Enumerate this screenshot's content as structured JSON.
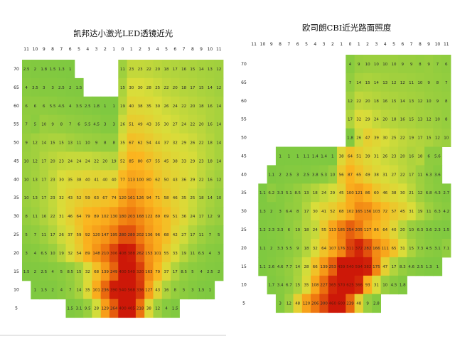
{
  "chart_data": [
    {
      "type": "heatmap",
      "title": "凯邦达小激光LED透镜近光",
      "x_ticks": [
        "11",
        "10",
        "9",
        "8",
        "7",
        "6",
        "5",
        "4",
        "3",
        "2",
        "1",
        "0",
        "1",
        "2",
        "3",
        "4",
        "5",
        "6",
        "7",
        "8",
        "9",
        "10",
        "11"
      ],
      "y_ticks": [
        "70",
        "65",
        "60",
        "55",
        "50",
        "45",
        "40",
        "35",
        "30",
        "25",
        "20",
        "15",
        "10",
        "5"
      ],
      "color_scale": [
        "#7cc840",
        "#d9dd3a",
        "#fbb620",
        "#f07b10",
        "#cd1808"
      ],
      "rows": [
        [
          "2.5",
          "2",
          "1.8",
          "1.5",
          "1.3",
          "1",
          null,
          null,
          null,
          null,
          null,
          "11",
          "23",
          "23",
          "22",
          "20",
          "18",
          "17",
          "16",
          "15",
          "14",
          "13",
          "12"
        ],
        [
          "4",
          "3.5",
          "3",
          "3",
          "2.5",
          "2",
          "1.5",
          null,
          null,
          null,
          null,
          "15",
          "30",
          "30",
          "28",
          "25",
          "22",
          "20",
          "18",
          "17",
          "15",
          "14",
          "12"
        ],
        [
          "6",
          "6",
          "6",
          "5.5",
          "4.5",
          "4",
          "3.5",
          "2.5",
          "1.8",
          "1",
          "1",
          "19",
          "40",
          "38",
          "35",
          "30",
          "26",
          "24",
          "22",
          "20",
          "18",
          "16",
          "14"
        ],
        [
          "7",
          "5",
          "10",
          "9",
          "8",
          "7",
          "6",
          "5.5",
          "4.5",
          "3",
          "3",
          "26",
          "51",
          "49",
          "43",
          "35",
          "30",
          "27",
          "24",
          "22",
          "20",
          "16",
          "14"
        ],
        [
          "9",
          "12",
          "14",
          "15",
          "15",
          "13",
          "11",
          "10",
          "9",
          "8",
          "8",
          "35",
          "67",
          "62",
          "54",
          "44",
          "37",
          "32",
          "29",
          "26",
          "22",
          "18",
          "14"
        ],
        [
          "10",
          "12",
          "17",
          "20",
          "23",
          "24",
          "24",
          "24",
          "22",
          "20",
          "19",
          "52",
          "85",
          "80",
          "67",
          "55",
          "45",
          "38",
          "33",
          "29",
          "23",
          "18",
          "14"
        ],
        [
          "10",
          "13",
          "17",
          "23",
          "30",
          "35",
          "38",
          "40",
          "41",
          "40",
          "40",
          "77",
          "113",
          "100",
          "80",
          "62",
          "50",
          "43",
          "36",
          "29",
          "22",
          "16",
          "12"
        ],
        [
          "10",
          "13",
          "17",
          "23",
          "32",
          "43",
          "52",
          "59",
          "63",
          "67",
          "74",
          "120",
          "161",
          "126",
          "94",
          "71",
          "58",
          "46",
          "35",
          "25",
          "18",
          "14",
          "10"
        ],
        [
          "8",
          "11",
          "16",
          "22",
          "31",
          "46",
          "64",
          "79",
          "89",
          "102",
          "130",
          "180",
          "203",
          "168",
          "122",
          "89",
          "69",
          "51",
          "36",
          "24",
          "17",
          "12",
          "9"
        ],
        [
          "5",
          "7",
          "11",
          "17",
          "26",
          "37",
          "59",
          "92",
          "120",
          "147",
          "195",
          "280",
          "280",
          "202",
          "136",
          "96",
          "68",
          "42",
          "27",
          "17",
          "11",
          "7",
          "5"
        ],
        [
          "3",
          "4",
          "6.5",
          "10",
          "19",
          "32",
          "54",
          "89",
          "148",
          "210",
          "306",
          "408",
          "388",
          "262",
          "153",
          "101",
          "55",
          "33",
          "19",
          "11",
          "6.5",
          "4",
          "3"
        ],
        [
          "1.5",
          "2",
          "2.5",
          "4",
          "5",
          "8.5",
          "15",
          "32",
          "68",
          "139",
          "249",
          "400",
          "540",
          "320",
          "163",
          "79",
          "37",
          "17",
          "8.5",
          "5",
          "4",
          "2.5",
          "2"
        ],
        [
          null,
          "1",
          "1.5",
          "2",
          "4",
          "7",
          "14",
          "35",
          "101",
          "236",
          "390",
          "540",
          "568",
          "336",
          "127",
          "43",
          "16",
          "8",
          "5",
          "3",
          "1.5",
          "1",
          null
        ],
        [
          null,
          null,
          null,
          null,
          null,
          "1.5",
          "3.1",
          "9.5",
          "28",
          "129",
          "264",
          "400",
          "405",
          "218",
          "38",
          "12",
          "4",
          "1.5",
          null,
          null,
          null,
          null,
          null
        ]
      ]
    },
    {
      "type": "heatmap",
      "title": "欧司朗CBI近光路面照度",
      "x_ticks": [
        "11",
        "10",
        "9",
        "8",
        "7",
        "6",
        "5",
        "4",
        "3",
        "2",
        "1",
        "0",
        "1",
        "2",
        "3",
        "4",
        "5",
        "6",
        "7",
        "8",
        "9",
        "10",
        "11"
      ],
      "y_ticks": [
        "70",
        "65",
        "60",
        "55",
        "50",
        "45",
        "40",
        "35",
        "30",
        "25",
        "20",
        "15",
        "10",
        "5"
      ],
      "color_scale": [
        "#7cc840",
        "#d9dd3a",
        "#fbb620",
        "#f07b10",
        "#cd1808"
      ],
      "rows": [
        [
          null,
          null,
          null,
          null,
          null,
          null,
          null,
          null,
          null,
          null,
          null,
          "4",
          "9",
          "10",
          "10",
          "10",
          "10",
          "9",
          "9",
          "8",
          "9",
          "7",
          "6"
        ],
        [
          null,
          null,
          null,
          null,
          null,
          null,
          null,
          null,
          null,
          null,
          null,
          "7",
          "14",
          "15",
          "14",
          "13",
          "12",
          "12",
          "11",
          "10",
          "9",
          "8",
          "7"
        ],
        [
          null,
          null,
          null,
          null,
          null,
          null,
          null,
          null,
          null,
          null,
          null,
          "12",
          "22",
          "20",
          "18",
          "16",
          "15",
          "14",
          "13",
          "12",
          "10",
          "9",
          "8"
        ],
        [
          null,
          null,
          null,
          null,
          null,
          null,
          null,
          null,
          null,
          null,
          null,
          "17",
          "32",
          "29",
          "24",
          "20",
          "18",
          "16",
          "15",
          "13",
          "12",
          "10",
          "8"
        ],
        [
          null,
          null,
          null,
          null,
          null,
          null,
          null,
          null,
          null,
          null,
          null,
          "1.8",
          "26",
          "47",
          "39",
          "30",
          "25",
          "22",
          "19",
          "17",
          "15",
          "12",
          "10"
        ],
        [
          null,
          null,
          null,
          "1",
          "1",
          "1",
          "1.1",
          "1.4",
          "1.4",
          "1",
          "38",
          "64",
          "51",
          "39",
          "31",
          "26",
          "23",
          "20",
          "16",
          "18",
          "6",
          "5.6",
          null
        ],
        [
          null,
          null,
          "1.1",
          "2",
          "2.5",
          "3",
          "2.5",
          "3.8",
          "5.3",
          "10",
          "56",
          "87",
          "65",
          "49",
          "38",
          "31",
          "27",
          "22",
          "17",
          "11",
          "6.3",
          "3.6",
          null
        ],
        [
          null,
          "1.1",
          "6.2",
          "3.3",
          "5.1",
          "8.5",
          "13",
          "18",
          "24",
          "29",
          "45",
          "100",
          "121",
          "86",
          "60",
          "46",
          "38",
          "30",
          "21",
          "12",
          "6.8",
          "4.3",
          "2.7"
        ],
        [
          null,
          "1.3",
          "2",
          "3",
          "6.4",
          "8",
          "17",
          "30",
          "41",
          "52",
          "68",
          "102",
          "165",
          "156",
          "103",
          "72",
          "57",
          "45",
          "31",
          "19",
          "11",
          "6.3",
          "4.2"
        ],
        [
          null,
          "1.2",
          "2.3",
          "3.3",
          "6",
          "10",
          "18",
          "24",
          "55",
          "113",
          "185",
          "254",
          "205",
          "127",
          "86",
          "64",
          "40",
          "20",
          "10",
          "6.3",
          "3.6",
          "2.3",
          "1.5"
        ],
        [
          null,
          "1.1",
          "2",
          "3.3",
          "5.5",
          "9",
          "18",
          "32",
          "64",
          "107",
          "176",
          "311",
          "372",
          "282",
          "166",
          "111",
          "65",
          "31",
          "15",
          "7.3",
          "4.5",
          "3.1",
          "7.1"
        ],
        [
          null,
          "1.1",
          "2.6",
          "4.6",
          "7.7",
          "14",
          "28",
          "66",
          "139",
          "253",
          "439",
          "540",
          "594",
          "382",
          "175",
          "47",
          "17",
          "8.3",
          "4.6",
          "2.5",
          "1.3",
          "1",
          null
        ],
        [
          null,
          null,
          "1.7",
          "3.4",
          "6.7",
          "15",
          "35",
          "108",
          "227",
          "365",
          "570",
          "625",
          "366",
          "93",
          "31",
          "10",
          "4.5",
          "1.8",
          null,
          null,
          null,
          null,
          null
        ],
        [
          null,
          null,
          null,
          "3",
          "12",
          "48",
          "120",
          "206",
          "300",
          "460",
          "600",
          "239",
          "48",
          "9",
          "2.8",
          null,
          null,
          null,
          null,
          null,
          null,
          null,
          null
        ]
      ]
    }
  ]
}
